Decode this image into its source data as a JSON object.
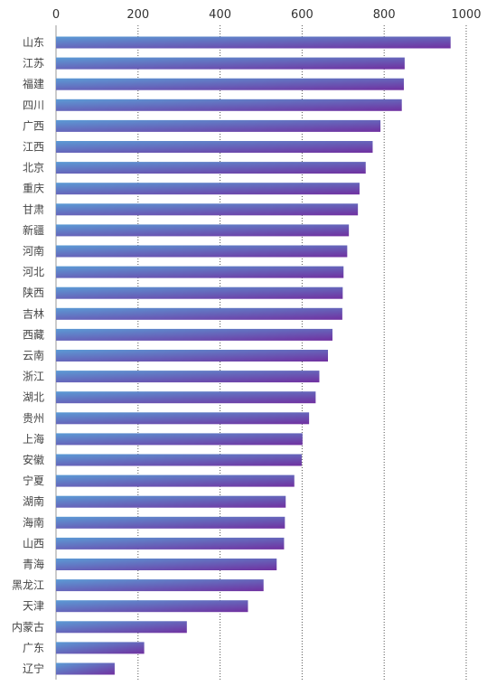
{
  "chart_data": {
    "type": "bar",
    "orientation": "horizontal",
    "categories": [
      "山东",
      "江苏",
      "福建",
      "四川",
      "广西",
      "江西",
      "北京",
      "重庆",
      "甘肃",
      "新疆",
      "河南",
      "河北",
      "陕西",
      "吉林",
      "西藏",
      "云南",
      "浙江",
      "湖北",
      "贵州",
      "上海",
      "安徽",
      "宁夏",
      "湖南",
      "海南",
      "山西",
      "青海",
      "黑龙江",
      "天津",
      "内蒙古",
      "广东",
      "辽宁"
    ],
    "values": [
      962,
      850,
      848,
      843,
      791,
      772,
      755,
      740,
      736,
      714,
      710,
      701,
      699,
      698,
      674,
      663,
      642,
      633,
      617,
      601,
      599,
      581,
      560,
      558,
      556,
      538,
      506,
      468,
      319,
      215,
      143
    ],
    "xlim": [
      0,
      1000
    ],
    "xticks": [
      "0",
      "200",
      "400",
      "600",
      "800",
      "1000"
    ],
    "xtick_values": [
      0,
      200,
      400,
      600,
      800,
      1000
    ],
    "axis_position": "top",
    "grid": "vertical dotted",
    "title": "",
    "xlabel": "",
    "ylabel": "",
    "colors": {
      "bar_start": "#5b9bd5",
      "bar_end": "#7030a0",
      "grid": "#555555",
      "axis": "#999999"
    }
  }
}
